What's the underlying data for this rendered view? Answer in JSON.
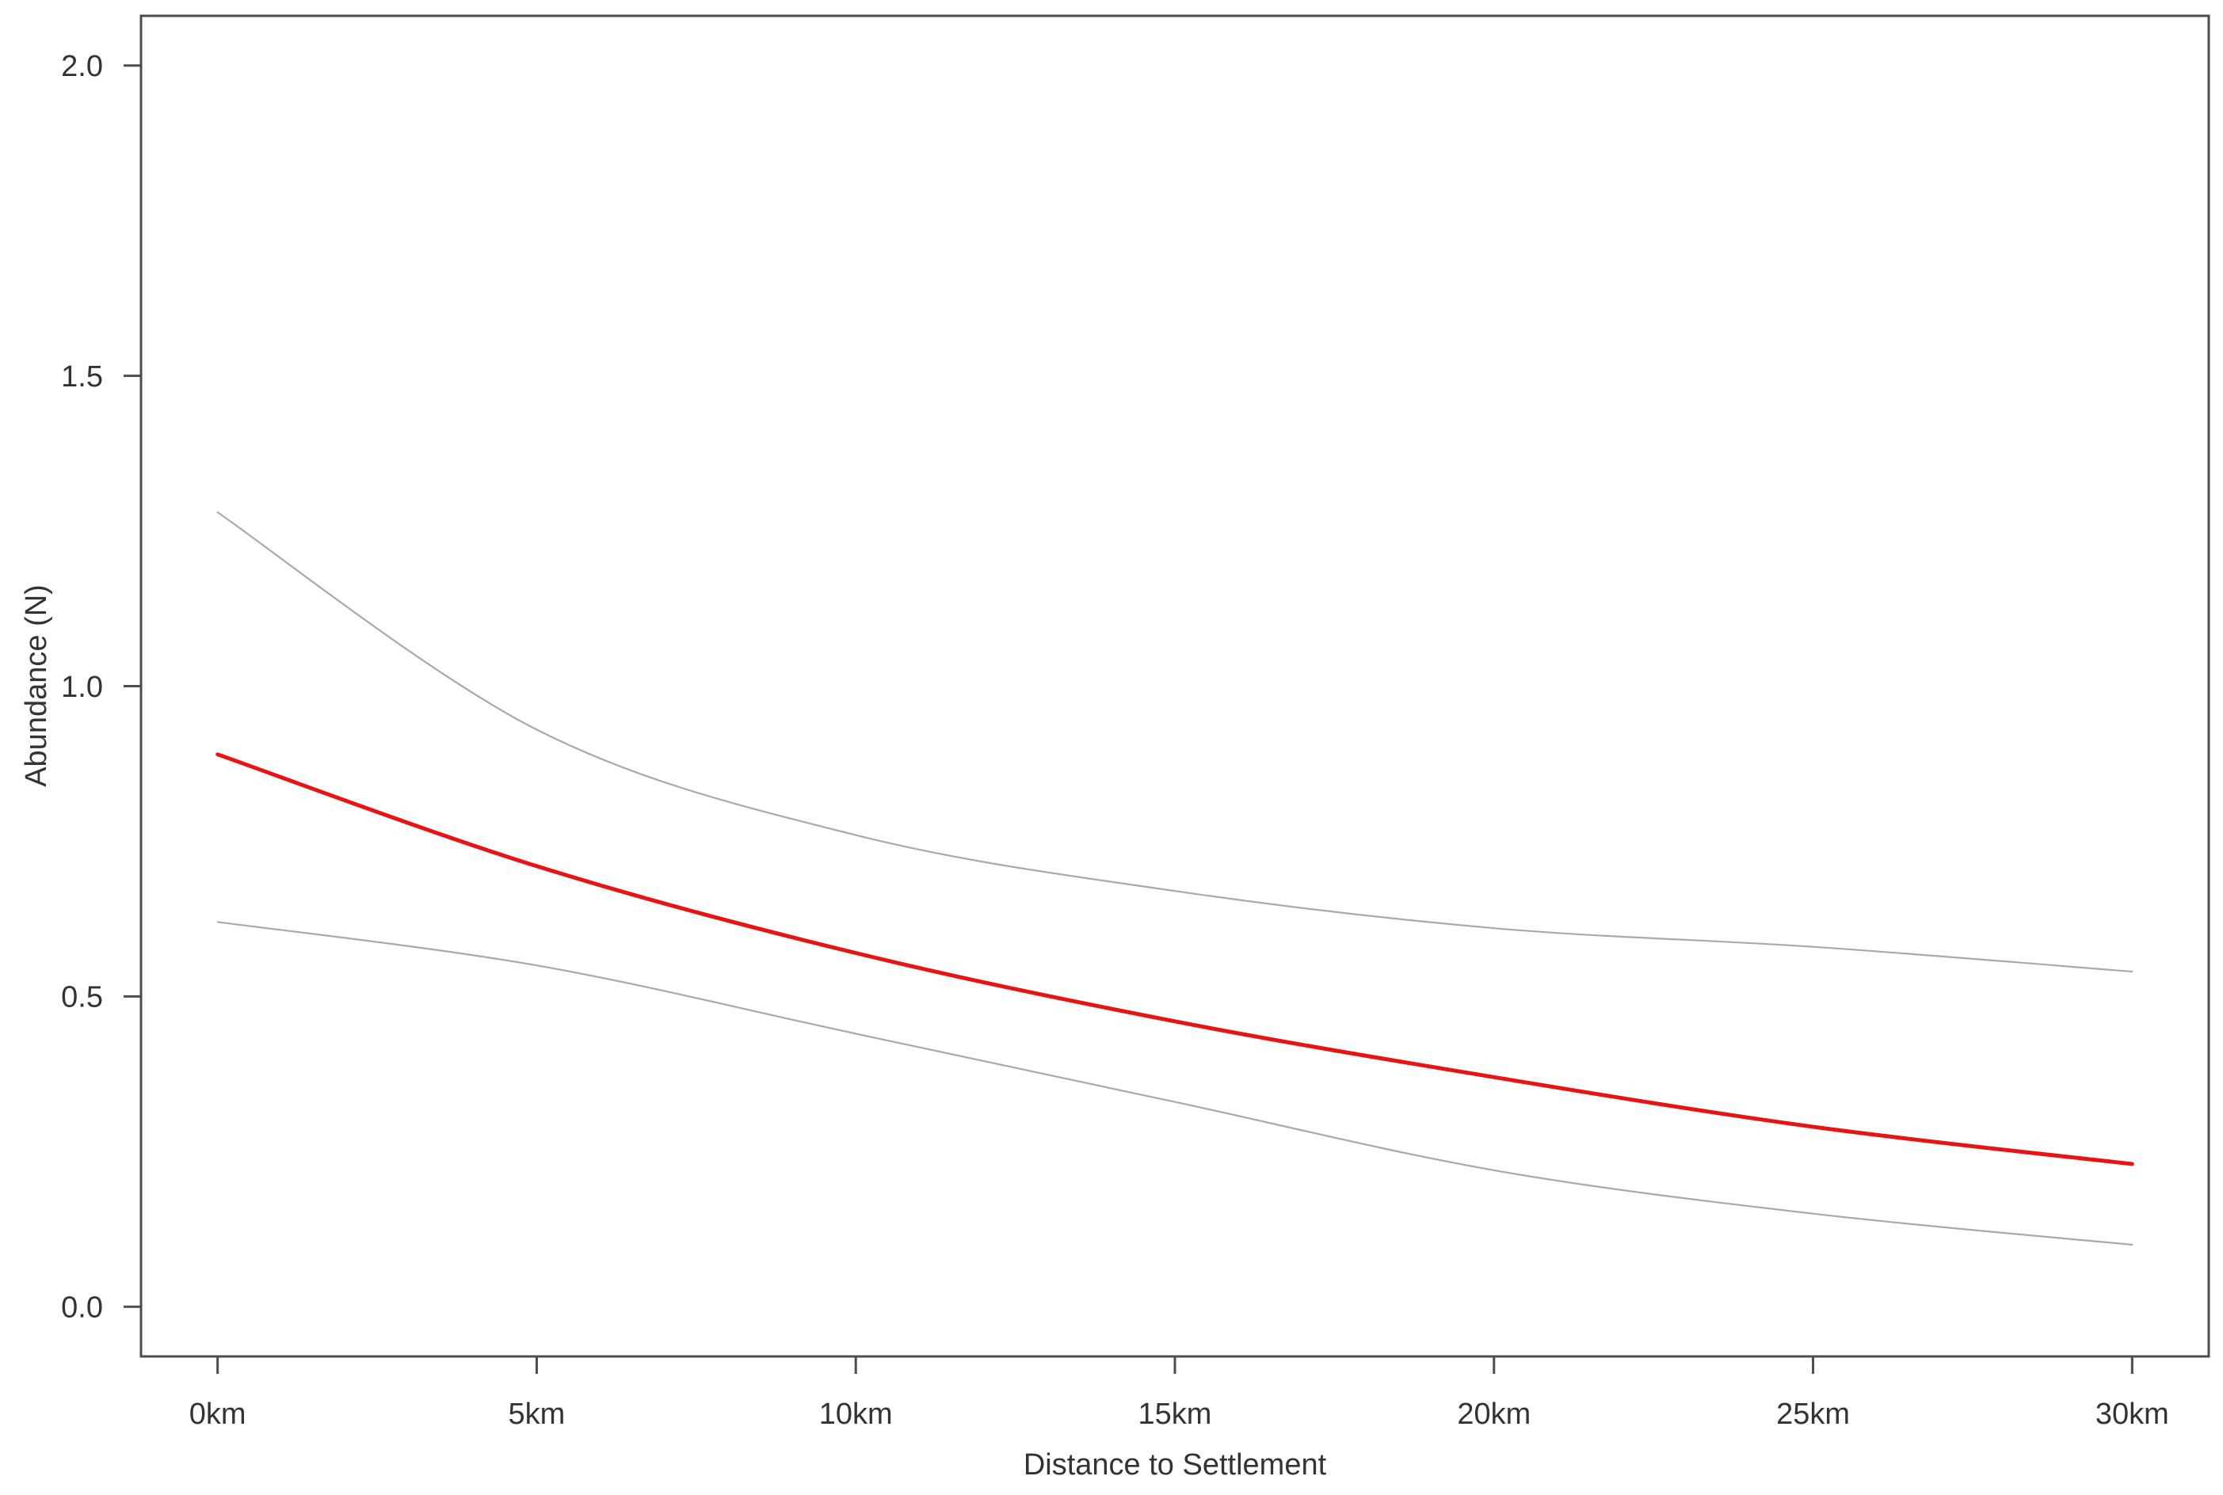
{
  "page": {
    "background_color": "#ffffff"
  },
  "chart_data": {
    "type": "line",
    "title": "",
    "xlabel": "Distance to Settlement",
    "ylabel": "Abundance (N)",
    "x_unit": "km",
    "x": [
      0,
      5,
      10,
      15,
      20,
      25,
      30
    ],
    "x_tick_labels": [
      "0km",
      "5km",
      "10km",
      "15km",
      "20km",
      "25km",
      "30km"
    ],
    "y_ticks": [
      0.0,
      0.5,
      1.0,
      1.5,
      2.0
    ],
    "y_tick_labels": [
      "0.0",
      "0.5",
      "1.0",
      "1.5",
      "2.0"
    ],
    "xlim": [
      -1.2,
      31.2
    ],
    "ylim": [
      -0.08,
      2.08
    ],
    "grid": false,
    "legend_position": "none",
    "axis_color": "#4d4d4d",
    "text_color": "#333333",
    "series": [
      {
        "name": "predicted-abundance",
        "role": "mean",
        "color": "#e81414",
        "stroke_width": 5,
        "values": [
          0.89,
          0.71,
          0.57,
          0.46,
          0.37,
          0.29,
          0.23
        ]
      },
      {
        "name": "upper-confidence-limit",
        "role": "upper-ci",
        "color": "#a9a9a9",
        "stroke_width": 2.2,
        "values": [
          1.28,
          0.93,
          0.76,
          0.67,
          0.61,
          0.58,
          0.54
        ]
      },
      {
        "name": "lower-confidence-limit",
        "role": "lower-ci",
        "color": "#a9a9a9",
        "stroke_width": 2.2,
        "values": [
          0.62,
          0.55,
          0.44,
          0.33,
          0.22,
          0.15,
          0.1
        ]
      }
    ]
  }
}
